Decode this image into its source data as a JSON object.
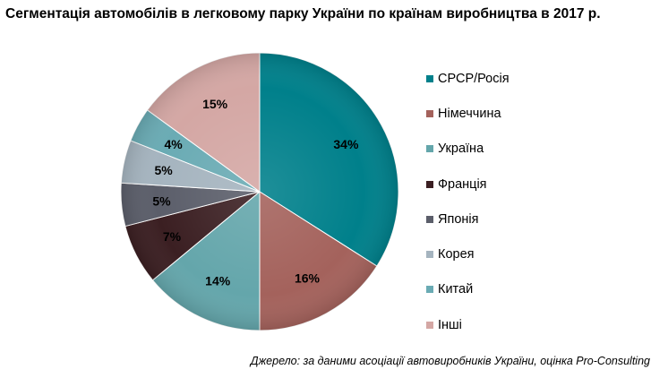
{
  "title": "Сегментація автомобілів в легковому парку України по країнам виробництва в 2017 р.",
  "source": "Джерело: за даними асоціації автовиробників України, оцінка Pro-Consulting",
  "chart_data": {
    "type": "pie",
    "title": "Сегментація автомобілів в легковому парку України по країнам виробництва в 2017 р.",
    "legend_position": "right",
    "slices": [
      {
        "label": "СРСР/Росія",
        "value": 34,
        "display": "34%",
        "color": "#00808b"
      },
      {
        "label": "Німеччина",
        "value": 16,
        "display": "16%",
        "color": "#a4625c"
      },
      {
        "label": "Україна",
        "value": 14,
        "display": "14%",
        "color": "#64a6ab"
      },
      {
        "label": "Франція",
        "value": 7,
        "display": "7%",
        "color": "#3b1f22"
      },
      {
        "label": "Японія",
        "value": 5,
        "display": "5%",
        "color": "#5b5e6a"
      },
      {
        "label": "Корея",
        "value": 5,
        "display": "5%",
        "color": "#a5b4bf"
      },
      {
        "label": "Китай",
        "value": 4,
        "display": "4%",
        "color": "#6aabb4"
      },
      {
        "label": "Інші",
        "value": 15,
        "display": "15%",
        "color": "#d4a7a4"
      }
    ]
  }
}
